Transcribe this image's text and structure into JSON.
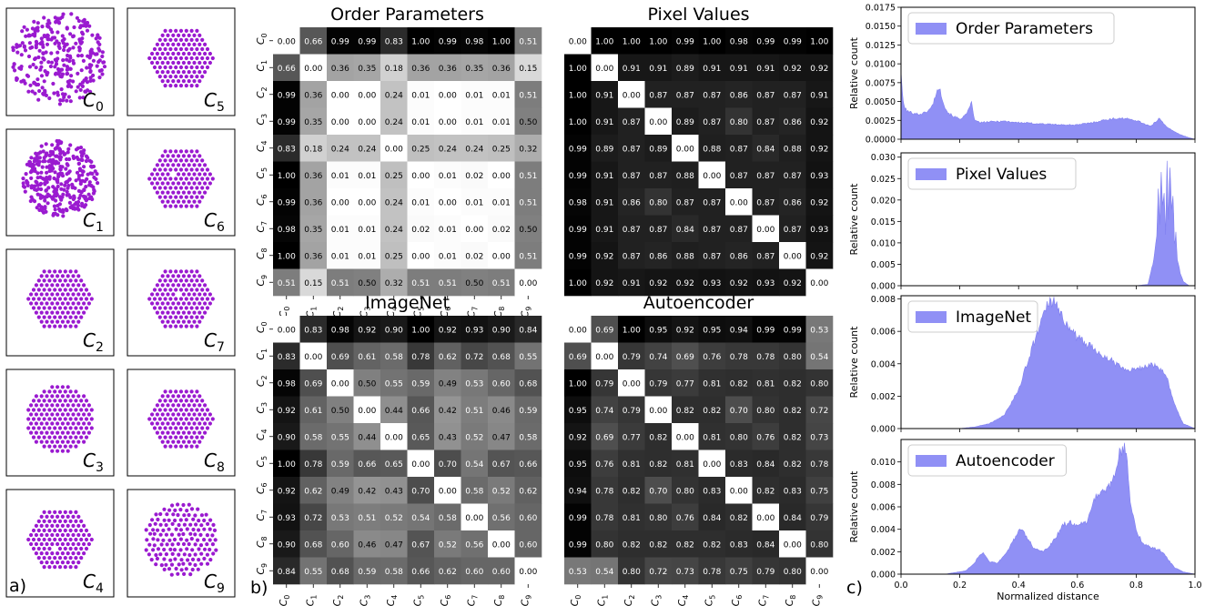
{
  "panel_labels": {
    "a": "a)",
    "b": "b)",
    "c": "c)"
  },
  "clusters": [
    {
      "label": "C",
      "sub": "0",
      "shape": "disordered"
    },
    {
      "label": "C",
      "sub": "1",
      "shape": "semi-ordered"
    },
    {
      "label": "C",
      "sub": "2",
      "shape": "hexagonal"
    },
    {
      "label": "C",
      "sub": "3",
      "shape": "hexagonal-round"
    },
    {
      "label": "C",
      "sub": "4",
      "shape": "hexagonal-defect"
    },
    {
      "label": "C",
      "sub": "5",
      "shape": "hexagonal"
    },
    {
      "label": "C",
      "sub": "6",
      "shape": "hexagonal-defect"
    },
    {
      "label": "C",
      "sub": "7",
      "shape": "hexagonal-defect"
    },
    {
      "label": "C",
      "sub": "8",
      "shape": "hexagonal"
    },
    {
      "label": "C",
      "sub": "9",
      "shape": "round-loose"
    }
  ],
  "colors": {
    "particle": "#9a1ad0",
    "hist_fill": "#9090f5",
    "hist_edge": "#8080f0",
    "frame": "#000000"
  },
  "chart_data": [
    {
      "type": "heatmap",
      "title": "Order Parameters",
      "row_labels": [
        "C0",
        "C1",
        "C2",
        "C3",
        "C4",
        "C5",
        "C6",
        "C7",
        "C8",
        "C9"
      ],
      "col_labels": [
        "C0",
        "C1",
        "C2",
        "C3",
        "C4",
        "C5",
        "C6",
        "C7",
        "C8",
        "C9"
      ],
      "values": [
        [
          0.0,
          0.66,
          0.99,
          0.99,
          0.83,
          1.0,
          0.99,
          0.98,
          1.0,
          0.51
        ],
        [
          0.66,
          0.0,
          0.36,
          0.35,
          0.18,
          0.36,
          0.36,
          0.35,
          0.36,
          0.15
        ],
        [
          0.99,
          0.36,
          0.0,
          0.0,
          0.24,
          0.01,
          0.0,
          0.01,
          0.01,
          0.51
        ],
        [
          0.99,
          0.35,
          0.0,
          0.0,
          0.24,
          0.01,
          0.0,
          0.01,
          0.01,
          0.5
        ],
        [
          0.83,
          0.18,
          0.24,
          0.24,
          0.0,
          0.25,
          0.24,
          0.24,
          0.25,
          0.32
        ],
        [
          1.0,
          0.36,
          0.01,
          0.01,
          0.25,
          0.0,
          0.01,
          0.02,
          0.0,
          0.51
        ],
        [
          0.99,
          0.36,
          0.0,
          0.0,
          0.24,
          0.01,
          0.0,
          0.01,
          0.01,
          0.51
        ],
        [
          0.98,
          0.35,
          0.01,
          0.01,
          0.24,
          0.02,
          0.01,
          0.0,
          0.02,
          0.5
        ],
        [
          1.0,
          0.36,
          0.01,
          0.01,
          0.25,
          0.0,
          0.01,
          0.02,
          0.0,
          0.51
        ],
        [
          0.51,
          0.15,
          0.51,
          0.5,
          0.32,
          0.51,
          0.51,
          0.5,
          0.51,
          0.0
        ]
      ],
      "colorscale": "white-to-black",
      "vmin": 0,
      "vmax": 1
    },
    {
      "type": "heatmap",
      "title": "Pixel Values",
      "row_labels": [],
      "col_labels": [],
      "values": [
        [
          0.0,
          1.0,
          1.0,
          1.0,
          0.99,
          1.0,
          0.98,
          0.99,
          0.99,
          1.0
        ],
        [
          1.0,
          0.0,
          0.91,
          0.91,
          0.89,
          0.91,
          0.91,
          0.91,
          0.92,
          0.92
        ],
        [
          1.0,
          0.91,
          0.0,
          0.87,
          0.87,
          0.87,
          0.86,
          0.87,
          0.87,
          0.91
        ],
        [
          1.0,
          0.91,
          0.87,
          0.0,
          0.89,
          0.87,
          0.8,
          0.87,
          0.86,
          0.92
        ],
        [
          0.99,
          0.89,
          0.87,
          0.89,
          0.0,
          0.88,
          0.87,
          0.84,
          0.88,
          0.92
        ],
        [
          0.99,
          0.91,
          0.87,
          0.87,
          0.88,
          0.0,
          0.87,
          0.87,
          0.87,
          0.93
        ],
        [
          0.98,
          0.91,
          0.86,
          0.8,
          0.87,
          0.87,
          0.0,
          0.87,
          0.86,
          0.92
        ],
        [
          0.99,
          0.91,
          0.87,
          0.87,
          0.84,
          0.87,
          0.87,
          0.0,
          0.87,
          0.93
        ],
        [
          0.99,
          0.92,
          0.87,
          0.86,
          0.88,
          0.87,
          0.86,
          0.87,
          0.0,
          0.92
        ],
        [
          1.0,
          0.92,
          0.91,
          0.92,
          0.92,
          0.93,
          0.92,
          0.93,
          0.92,
          0.0
        ]
      ],
      "colorscale": "white-to-black",
      "vmin": 0,
      "vmax": 1
    },
    {
      "type": "heatmap",
      "title": "ImageNet",
      "row_labels": [
        "C0",
        "C1",
        "C2",
        "C3",
        "C4",
        "C5",
        "C6",
        "C7",
        "C8",
        "C9"
      ],
      "col_labels": [
        "C0",
        "C1",
        "C2",
        "C3",
        "C4",
        "C5",
        "C6",
        "C7",
        "C8",
        "C9"
      ],
      "values": [
        [
          0.0,
          0.83,
          0.98,
          0.92,
          0.9,
          1.0,
          0.92,
          0.93,
          0.9,
          0.84
        ],
        [
          0.83,
          0.0,
          0.69,
          0.61,
          0.58,
          0.78,
          0.62,
          0.72,
          0.68,
          0.55
        ],
        [
          0.98,
          0.69,
          0.0,
          0.5,
          0.55,
          0.59,
          0.49,
          0.53,
          0.6,
          0.68
        ],
        [
          0.92,
          0.61,
          0.5,
          0.0,
          0.44,
          0.66,
          0.42,
          0.51,
          0.46,
          0.59
        ],
        [
          0.9,
          0.58,
          0.55,
          0.44,
          0.0,
          0.65,
          0.43,
          0.52,
          0.47,
          0.58
        ],
        [
          1.0,
          0.78,
          0.59,
          0.66,
          0.65,
          0.0,
          0.7,
          0.54,
          0.67,
          0.66
        ],
        [
          0.92,
          0.62,
          0.49,
          0.42,
          0.43,
          0.7,
          0.0,
          0.58,
          0.52,
          0.62
        ],
        [
          0.93,
          0.72,
          0.53,
          0.51,
          0.52,
          0.54,
          0.58,
          0.0,
          0.56,
          0.6
        ],
        [
          0.9,
          0.68,
          0.6,
          0.46,
          0.47,
          0.67,
          0.52,
          0.56,
          0.0,
          0.6
        ],
        [
          0.84,
          0.55,
          0.68,
          0.59,
          0.58,
          0.66,
          0.62,
          0.6,
          0.6,
          0.0
        ]
      ],
      "colorscale": "white-to-black",
      "vmin": 0,
      "vmax": 1
    },
    {
      "type": "heatmap",
      "title": "Autoencoder",
      "row_labels": [],
      "col_labels": [
        "C0",
        "C1",
        "C2",
        "C3",
        "C4",
        "C5",
        "C6",
        "C7",
        "C8",
        "C9"
      ],
      "values": [
        [
          0.0,
          0.69,
          1.0,
          0.95,
          0.92,
          0.95,
          0.94,
          0.99,
          0.99,
          0.53
        ],
        [
          0.69,
          0.0,
          0.79,
          0.74,
          0.69,
          0.76,
          0.78,
          0.78,
          0.8,
          0.54
        ],
        [
          1.0,
          0.79,
          0.0,
          0.79,
          0.77,
          0.81,
          0.82,
          0.81,
          0.82,
          0.8
        ],
        [
          0.95,
          0.74,
          0.79,
          0.0,
          0.82,
          0.82,
          0.7,
          0.8,
          0.82,
          0.72
        ],
        [
          0.92,
          0.69,
          0.77,
          0.82,
          0.0,
          0.81,
          0.8,
          0.76,
          0.82,
          0.73
        ],
        [
          0.95,
          0.76,
          0.81,
          0.82,
          0.81,
          0.0,
          0.83,
          0.84,
          0.82,
          0.78
        ],
        [
          0.94,
          0.78,
          0.82,
          0.7,
          0.8,
          0.83,
          0.0,
          0.82,
          0.83,
          0.75
        ],
        [
          0.99,
          0.78,
          0.81,
          0.8,
          0.76,
          0.84,
          0.82,
          0.0,
          0.84,
          0.79
        ],
        [
          0.99,
          0.8,
          0.82,
          0.82,
          0.82,
          0.82,
          0.83,
          0.84,
          0.0,
          0.8
        ],
        [
          0.53,
          0.54,
          0.8,
          0.72,
          0.73,
          0.78,
          0.75,
          0.79,
          0.8,
          0.0
        ]
      ],
      "colorscale": "white-to-black",
      "vmin": 0,
      "vmax": 1
    },
    {
      "type": "area",
      "legend": "Order Parameters",
      "ylabel": "Relative count",
      "xlim": [
        0,
        1
      ],
      "ylim": [
        0,
        0.0175
      ],
      "yticks": [
        0.0,
        0.0025,
        0.005,
        0.0075,
        0.01,
        0.0125,
        0.015,
        0.0175
      ],
      "ytick_labels": [
        "0.0000",
        "0.0025",
        "0.0050",
        "0.0075",
        "0.0100",
        "0.0125",
        "0.0150",
        "0.0175"
      ],
      "x": [
        0.0,
        0.005,
        0.01,
        0.02,
        0.04,
        0.06,
        0.08,
        0.1,
        0.11,
        0.12,
        0.13,
        0.14,
        0.15,
        0.16,
        0.18,
        0.2,
        0.22,
        0.235,
        0.24,
        0.25,
        0.27,
        0.3,
        0.35,
        0.4,
        0.45,
        0.5,
        0.55,
        0.6,
        0.65,
        0.7,
        0.75,
        0.8,
        0.85,
        0.88,
        0.9,
        0.92,
        0.95,
        0.98,
        1.0
      ],
      "y": [
        0.0092,
        0.0058,
        0.0045,
        0.0037,
        0.0035,
        0.0033,
        0.0035,
        0.004,
        0.0048,
        0.0062,
        0.0068,
        0.0055,
        0.0042,
        0.0035,
        0.003,
        0.0027,
        0.0032,
        0.0042,
        0.005,
        0.0025,
        0.0022,
        0.0023,
        0.0024,
        0.0022,
        0.0021,
        0.002,
        0.0019,
        0.0019,
        0.0022,
        0.0026,
        0.0028,
        0.0025,
        0.0017,
        0.0028,
        0.0018,
        0.0012,
        0.0006,
        0.0002,
        0.0
      ],
      "legend_position": "top-left"
    },
    {
      "type": "area",
      "legend": "Pixel Values",
      "ylabel": "Relative count",
      "xlim": [
        0,
        1
      ],
      "ylim": [
        0,
        0.031
      ],
      "yticks": [
        0.0,
        0.005,
        0.01,
        0.015,
        0.02,
        0.025,
        0.03
      ],
      "ytick_labels": [
        "0.000",
        "0.005",
        "0.010",
        "0.015",
        "0.020",
        "0.025",
        "0.030"
      ],
      "x": [
        0.0,
        0.8,
        0.84,
        0.86,
        0.87,
        0.875,
        0.88,
        0.885,
        0.89,
        0.895,
        0.9,
        0.905,
        0.91,
        0.915,
        0.92,
        0.925,
        0.93,
        0.935,
        0.94,
        0.95,
        0.96,
        0.98,
        1.0
      ],
      "y": [
        0.0,
        0.0,
        0.0003,
        0.006,
        0.012,
        0.022,
        0.014,
        0.026,
        0.018,
        0.021,
        0.012,
        0.028,
        0.016,
        0.029,
        0.018,
        0.022,
        0.01,
        0.012,
        0.006,
        0.003,
        0.001,
        0.0,
        0.0
      ],
      "legend_position": "top-left"
    },
    {
      "type": "area",
      "legend": "ImageNet",
      "ylabel": "Relative count",
      "xlim": [
        0,
        1
      ],
      "ylim": [
        0,
        0.0082
      ],
      "yticks": [
        0.0,
        0.002,
        0.004,
        0.006,
        0.008
      ],
      "ytick_labels": [
        "0.000",
        "0.002",
        "0.004",
        "0.006",
        "0.008"
      ],
      "x": [
        0.0,
        0.2,
        0.25,
        0.3,
        0.35,
        0.4,
        0.45,
        0.5,
        0.52,
        0.55,
        0.6,
        0.65,
        0.7,
        0.75,
        0.8,
        0.85,
        0.9,
        0.93,
        0.96,
        1.0
      ],
      "y": [
        0.0,
        0.0,
        0.0001,
        0.0003,
        0.0008,
        0.0024,
        0.0052,
        0.0077,
        0.0078,
        0.0068,
        0.0056,
        0.005,
        0.0044,
        0.0038,
        0.0036,
        0.004,
        0.0034,
        0.0015,
        0.0003,
        0.0
      ],
      "legend_position": "top-left"
    },
    {
      "type": "area",
      "legend": "Autoencoder",
      "ylabel": "Relative count",
      "xlim": [
        0,
        1
      ],
      "ylim": [
        0,
        0.012
      ],
      "yticks": [
        0.0,
        0.002,
        0.004,
        0.006,
        0.008,
        0.01
      ],
      "ytick_labels": [
        "0.000",
        "0.002",
        "0.004",
        "0.006",
        "0.008",
        "0.010"
      ],
      "xticks": [
        0.0,
        0.2,
        0.4,
        0.6,
        0.8,
        1.0
      ],
      "xtick_labels": [
        "0.0",
        "0.2",
        "0.4",
        "0.6",
        "0.8",
        "1.0"
      ],
      "xlabel": "Normalized distance",
      "x": [
        0.0,
        0.15,
        0.22,
        0.25,
        0.27,
        0.28,
        0.3,
        0.33,
        0.37,
        0.4,
        0.41,
        0.42,
        0.45,
        0.48,
        0.5,
        0.53,
        0.55,
        0.58,
        0.6,
        0.63,
        0.65,
        0.67,
        0.7,
        0.72,
        0.74,
        0.76,
        0.77,
        0.78,
        0.8,
        0.82,
        0.85,
        0.88,
        0.9,
        0.93,
        0.96,
        1.0
      ],
      "y": [
        0.0,
        0.0,
        0.0003,
        0.001,
        0.0018,
        0.0019,
        0.0011,
        0.001,
        0.0024,
        0.0038,
        0.0039,
        0.0036,
        0.0024,
        0.002,
        0.0023,
        0.0034,
        0.0044,
        0.0046,
        0.0044,
        0.0046,
        0.0062,
        0.0072,
        0.0074,
        0.0083,
        0.0106,
        0.0112,
        0.0098,
        0.0066,
        0.004,
        0.0028,
        0.0024,
        0.0022,
        0.0016,
        0.0006,
        0.0002,
        0.0
      ],
      "legend_position": "top-left"
    }
  ]
}
